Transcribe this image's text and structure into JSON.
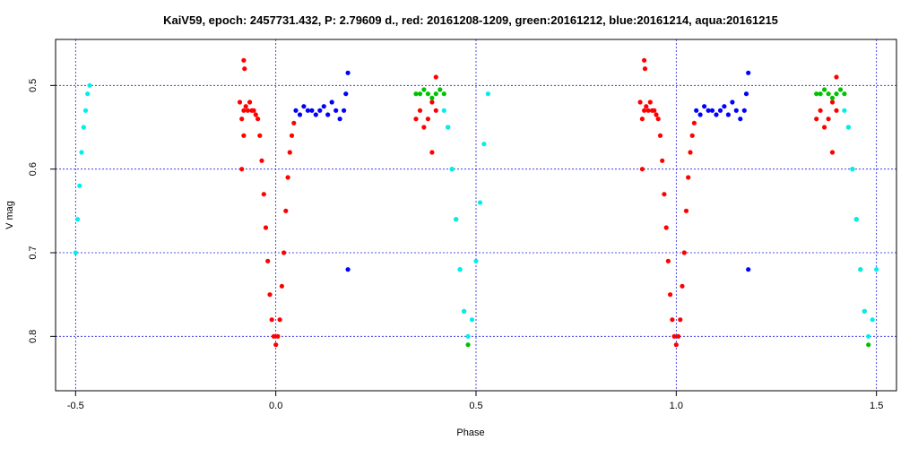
{
  "chart_data": {
    "type": "scatter",
    "title": "KaiV59, epoch: 2457731.432, P: 2.79609 d., red: 20161208-1209, green:20161212, blue:20161214, aqua:20161215",
    "xlabel": "Phase",
    "ylabel": "V mag",
    "xlim": [
      -0.55,
      1.55
    ],
    "ylim": [
      0.865,
      0.445
    ],
    "y_inverted": true,
    "grid": true,
    "grid_x": [
      -0.5,
      0.0,
      0.5,
      1.0,
      1.5
    ],
    "grid_y": [
      0.5,
      0.6,
      0.7,
      0.8
    ],
    "x_ticks": [
      {
        "value": -0.5,
        "label": "-0.5"
      },
      {
        "value": 0.0,
        "label": "0.0"
      },
      {
        "value": 0.5,
        "label": "0.5"
      },
      {
        "value": 1.0,
        "label": "1.0"
      },
      {
        "value": 1.5,
        "label": "1.5"
      }
    ],
    "y_ticks": [
      {
        "value": 0.5,
        "label": "0.5"
      },
      {
        "value": 0.6,
        "label": "0.6"
      },
      {
        "value": 0.7,
        "label": "0.7"
      },
      {
        "value": 0.8,
        "label": "0.8"
      }
    ],
    "series": [
      {
        "color": "#ff0000",
        "points": [
          [
            -0.09,
            0.52
          ],
          [
            -0.085,
            0.54
          ],
          [
            -0.08,
            0.53
          ],
          [
            -0.075,
            0.525
          ],
          [
            -0.07,
            0.53
          ],
          [
            -0.065,
            0.52
          ],
          [
            -0.06,
            0.53
          ],
          [
            -0.055,
            0.53
          ],
          [
            -0.05,
            0.535
          ],
          [
            -0.045,
            0.54
          ],
          [
            -0.08,
            0.56
          ],
          [
            -0.085,
            0.6
          ],
          [
            -0.08,
            0.47
          ],
          [
            -0.078,
            0.48
          ],
          [
            -0.04,
            0.56
          ],
          [
            -0.035,
            0.59
          ],
          [
            -0.03,
            0.63
          ],
          [
            -0.025,
            0.67
          ],
          [
            -0.02,
            0.71
          ],
          [
            -0.015,
            0.75
          ],
          [
            -0.01,
            0.78
          ],
          [
            -0.005,
            0.8
          ],
          [
            0.0,
            0.81
          ],
          [
            0.005,
            0.8
          ],
          [
            0.01,
            0.78
          ],
          [
            0.015,
            0.74
          ],
          [
            0.02,
            0.7
          ],
          [
            0.025,
            0.65
          ],
          [
            0.03,
            0.61
          ],
          [
            0.035,
            0.58
          ],
          [
            0.04,
            0.56
          ],
          [
            0.045,
            0.545
          ],
          [
            0.4,
            0.53
          ],
          [
            0.39,
            0.52
          ],
          [
            0.38,
            0.54
          ],
          [
            0.37,
            0.55
          ],
          [
            0.36,
            0.53
          ],
          [
            0.35,
            0.54
          ],
          [
            0.39,
            0.58
          ],
          [
            0.4,
            0.49
          ],
          [
            0.91,
            0.52
          ],
          [
            0.915,
            0.54
          ],
          [
            0.92,
            0.53
          ],
          [
            0.925,
            0.525
          ],
          [
            0.93,
            0.53
          ],
          [
            0.935,
            0.52
          ],
          [
            0.94,
            0.53
          ],
          [
            0.945,
            0.53
          ],
          [
            0.95,
            0.535
          ],
          [
            0.955,
            0.54
          ],
          [
            0.915,
            0.6
          ],
          [
            0.92,
            0.47
          ],
          [
            0.922,
            0.48
          ],
          [
            0.96,
            0.56
          ],
          [
            0.965,
            0.59
          ],
          [
            0.97,
            0.63
          ],
          [
            0.975,
            0.67
          ],
          [
            0.98,
            0.71
          ],
          [
            0.985,
            0.75
          ],
          [
            0.99,
            0.78
          ],
          [
            0.995,
            0.8
          ],
          [
            1.0,
            0.81
          ],
          [
            1.005,
            0.8
          ],
          [
            1.01,
            0.78
          ],
          [
            1.015,
            0.74
          ],
          [
            1.02,
            0.7
          ],
          [
            1.025,
            0.65
          ],
          [
            1.03,
            0.61
          ],
          [
            1.035,
            0.58
          ],
          [
            1.04,
            0.56
          ],
          [
            1.045,
            0.545
          ],
          [
            1.4,
            0.53
          ],
          [
            1.39,
            0.52
          ],
          [
            1.38,
            0.54
          ],
          [
            1.37,
            0.55
          ],
          [
            1.36,
            0.53
          ],
          [
            1.35,
            0.54
          ],
          [
            1.39,
            0.58
          ],
          [
            1.4,
            0.49
          ]
        ]
      },
      {
        "color": "#00c000",
        "points": [
          [
            0.35,
            0.51
          ],
          [
            0.36,
            0.51
          ],
          [
            0.37,
            0.505
          ],
          [
            0.38,
            0.51
          ],
          [
            0.39,
            0.515
          ],
          [
            0.4,
            0.51
          ],
          [
            0.41,
            0.505
          ],
          [
            0.42,
            0.51
          ],
          [
            0.43,
            0.55
          ],
          [
            0.44,
            0.6
          ],
          [
            0.45,
            0.66
          ],
          [
            0.46,
            0.72
          ],
          [
            0.47,
            0.77
          ],
          [
            0.48,
            0.81
          ],
          [
            1.35,
            0.51
          ],
          [
            1.36,
            0.51
          ],
          [
            1.37,
            0.505
          ],
          [
            1.38,
            0.51
          ],
          [
            1.39,
            0.515
          ],
          [
            1.4,
            0.51
          ],
          [
            1.41,
            0.505
          ],
          [
            1.42,
            0.51
          ],
          [
            1.43,
            0.55
          ],
          [
            1.44,
            0.6
          ],
          [
            1.45,
            0.66
          ],
          [
            1.46,
            0.72
          ],
          [
            1.47,
            0.77
          ],
          [
            1.48,
            0.81
          ]
        ]
      },
      {
        "color": "#0000ff",
        "points": [
          [
            0.05,
            0.53
          ],
          [
            0.06,
            0.535
          ],
          [
            0.07,
            0.525
          ],
          [
            0.08,
            0.53
          ],
          [
            0.09,
            0.53
          ],
          [
            0.1,
            0.535
          ],
          [
            0.11,
            0.53
          ],
          [
            0.12,
            0.525
          ],
          [
            0.13,
            0.535
          ],
          [
            0.14,
            0.52
          ],
          [
            0.15,
            0.53
          ],
          [
            0.16,
            0.54
          ],
          [
            0.17,
            0.53
          ],
          [
            0.175,
            0.51
          ],
          [
            0.18,
            0.485
          ],
          [
            0.18,
            0.72
          ],
          [
            1.05,
            0.53
          ],
          [
            1.06,
            0.535
          ],
          [
            1.07,
            0.525
          ],
          [
            1.08,
            0.53
          ],
          [
            1.09,
            0.53
          ],
          [
            1.1,
            0.535
          ],
          [
            1.11,
            0.53
          ],
          [
            1.12,
            0.525
          ],
          [
            1.13,
            0.535
          ],
          [
            1.14,
            0.52
          ],
          [
            1.15,
            0.53
          ],
          [
            1.16,
            0.54
          ],
          [
            1.17,
            0.53
          ],
          [
            1.175,
            0.51
          ],
          [
            1.18,
            0.485
          ],
          [
            1.18,
            0.72
          ]
        ]
      },
      {
        "color": "#00eeee",
        "points": [
          [
            -0.5,
            0.7
          ],
          [
            -0.495,
            0.66
          ],
          [
            -0.49,
            0.62
          ],
          [
            -0.485,
            0.58
          ],
          [
            -0.48,
            0.55
          ],
          [
            -0.475,
            0.53
          ],
          [
            -0.47,
            0.51
          ],
          [
            -0.465,
            0.5
          ],
          [
            0.42,
            0.53
          ],
          [
            0.43,
            0.55
          ],
          [
            0.44,
            0.6
          ],
          [
            0.45,
            0.66
          ],
          [
            0.46,
            0.72
          ],
          [
            0.47,
            0.77
          ],
          [
            0.48,
            0.8
          ],
          [
            0.49,
            0.78
          ],
          [
            0.5,
            0.71
          ],
          [
            0.51,
            0.64
          ],
          [
            0.52,
            0.57
          ],
          [
            0.53,
            0.51
          ],
          [
            1.42,
            0.53
          ],
          [
            1.43,
            0.55
          ],
          [
            1.44,
            0.6
          ],
          [
            1.45,
            0.66
          ],
          [
            1.46,
            0.72
          ],
          [
            1.47,
            0.77
          ],
          [
            1.48,
            0.8
          ],
          [
            1.49,
            0.78
          ],
          [
            1.5,
            0.72
          ]
        ]
      }
    ]
  }
}
